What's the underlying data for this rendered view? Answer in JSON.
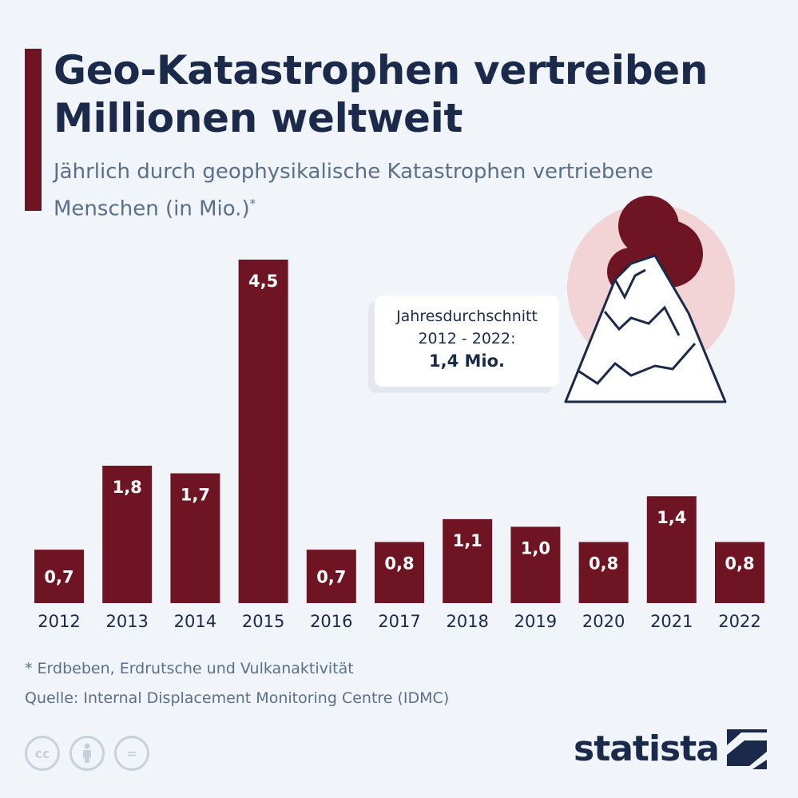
{
  "header": {
    "title": "Geo-Katastrophen vertreiben Millionen weltweit",
    "subtitle": "Jährlich durch geophysikalische Katastrophen vertriebene Menschen (in Mio.)",
    "subtitle_mark": "*"
  },
  "callout": {
    "line1": "Jahresdurchschnitt",
    "line2": "2012 - 2022:",
    "value": "1,4 Mio."
  },
  "footer": {
    "note": "* Erdbeben, Erdrutsche und Vulkanaktivität",
    "source": "Quelle: Internal Displacement Monitoring Centre (IDMC)",
    "logo": "statista",
    "license_icons": [
      "cc",
      "by",
      "="
    ]
  },
  "colors": {
    "bar": "#6e1423",
    "accent": "#6e1423",
    "text": "#1b2a4a",
    "muted": "#5a6f8a",
    "circle": "#f2d3d6"
  },
  "icons": [
    "volcano-icon",
    "cc-icon",
    "by-icon",
    "nd-icon",
    "statista-logo-icon"
  ],
  "chart_data": {
    "type": "bar",
    "categories": [
      "2012",
      "2013",
      "2014",
      "2015",
      "2016",
      "2017",
      "2018",
      "2019",
      "2020",
      "2021",
      "2022"
    ],
    "values": [
      0.7,
      1.8,
      1.7,
      4.5,
      0.7,
      0.8,
      1.1,
      1.0,
      0.8,
      1.4,
      0.8
    ],
    "labels": [
      "0,7",
      "1,8",
      "1,7",
      "4,5",
      "0,7",
      "0,8",
      "1,1",
      "1,0",
      "0,8",
      "1,4",
      "0,8"
    ],
    "title": "Geo-Katastrophen vertreiben Millionen weltweit",
    "ylabel": "",
    "ylim": [
      0,
      4.5
    ],
    "grid": false,
    "legend": "none"
  }
}
